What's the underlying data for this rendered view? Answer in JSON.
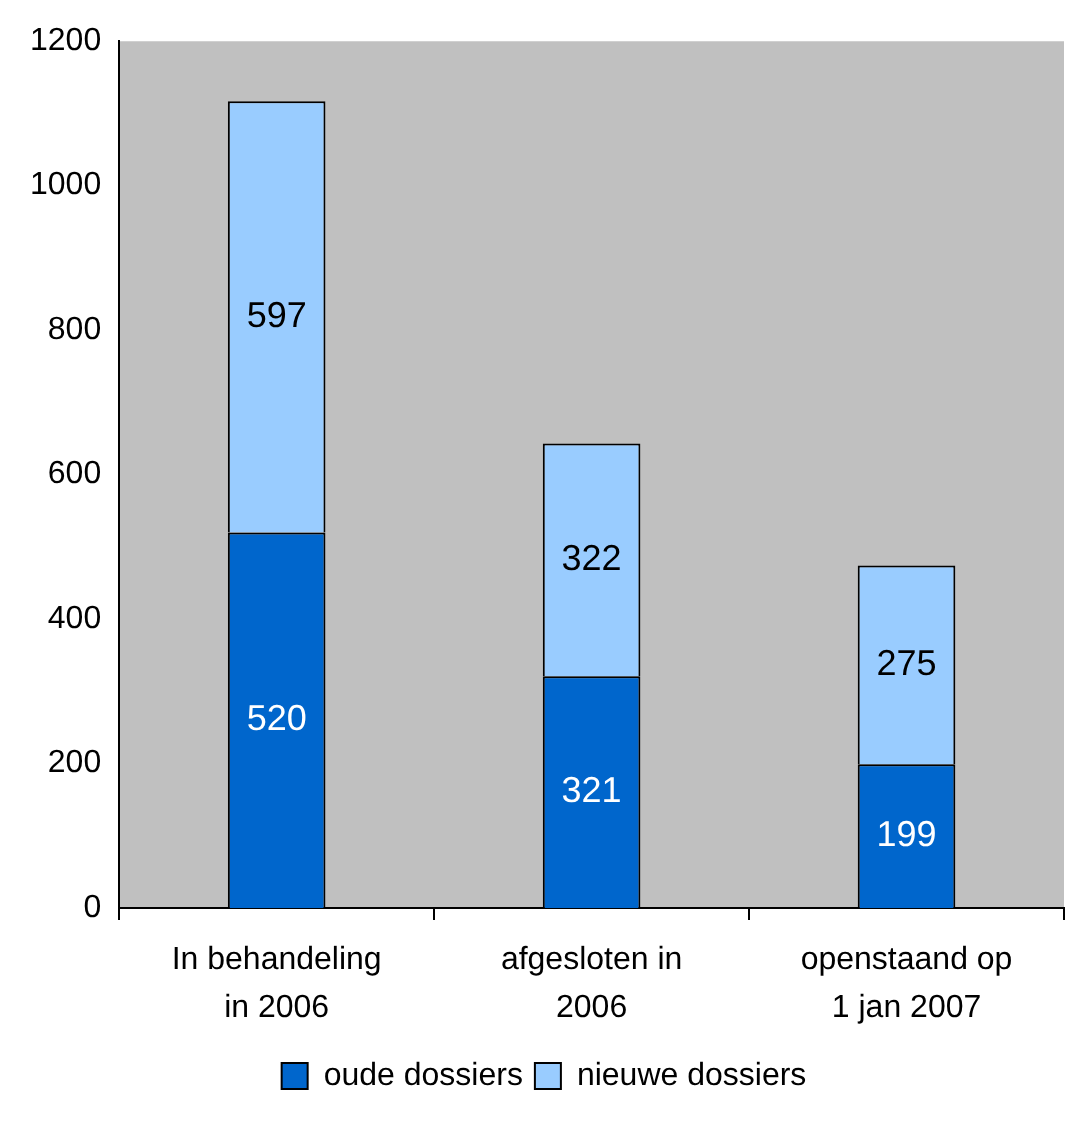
{
  "chart_data": {
    "type": "bar",
    "stacked": true,
    "categories": [
      "In behandeling in 2006",
      "afgesloten in 2006",
      "openstaand op 1 jan 2007"
    ],
    "series": [
      {
        "name": "oude dossiers",
        "color": "#0066cc",
        "values": [
          520,
          321,
          199
        ]
      },
      {
        "name": "nieuwe dossiers",
        "color": "#99ccff",
        "values": [
          597,
          322,
          275
        ]
      }
    ],
    "ylim": [
      0,
      1200
    ],
    "yticks": [
      0,
      200,
      400,
      600,
      800,
      1000,
      1200
    ],
    "grid": false,
    "legend": "bottom",
    "data_labels": true
  }
}
